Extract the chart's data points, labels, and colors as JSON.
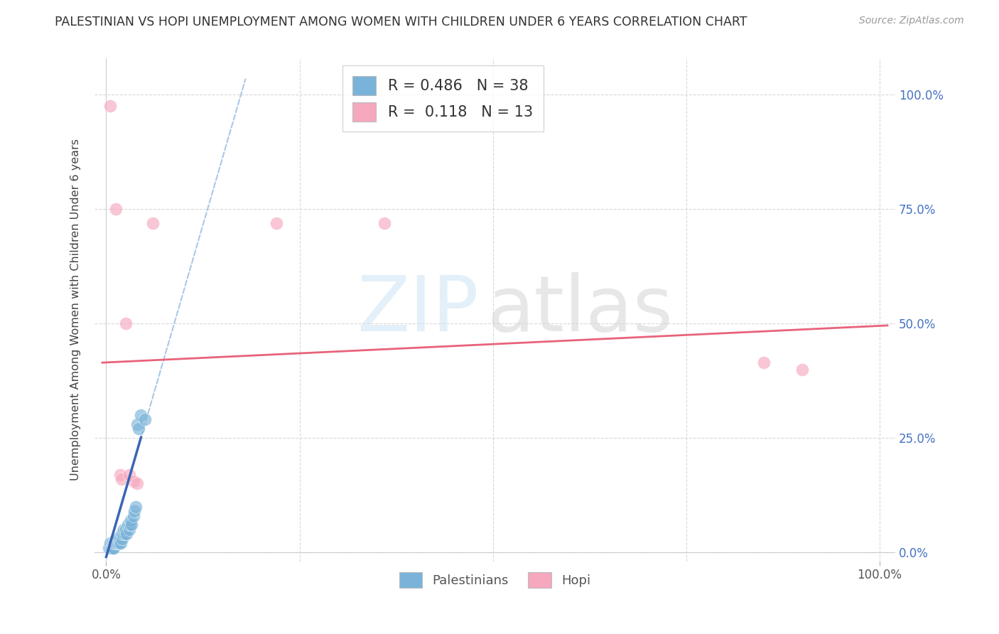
{
  "title": "PALESTINIAN VS HOPI UNEMPLOYMENT AMONG WOMEN WITH CHILDREN UNDER 6 YEARS CORRELATION CHART",
  "source": "Source: ZipAtlas.com",
  "ylabel": "Unemployment Among Women with Children Under 6 years",
  "xlim": [
    -0.015,
    1.02
  ],
  "ylim": [
    -0.02,
    1.08
  ],
  "ytick_values": [
    0.0,
    0.25,
    0.5,
    0.75,
    1.0
  ],
  "xtick_values": [
    0.0,
    1.0
  ],
  "background_color": "#ffffff",
  "grid_color": "#d8d8d8",
  "scatter_blue": "#7ab3d9",
  "scatter_pink": "#f5a8be",
  "blue_line_color": "#3a65b5",
  "pink_line_color": "#e8637a",
  "dash_line_color": "#a8c8e8",
  "right_tick_color": "#4472c4",
  "palestinians_x": [
    0.003,
    0.004,
    0.005,
    0.006,
    0.007,
    0.008,
    0.009,
    0.01,
    0.01,
    0.011,
    0.012,
    0.013,
    0.014,
    0.015,
    0.015,
    0.016,
    0.017,
    0.018,
    0.019,
    0.02,
    0.021,
    0.022,
    0.023,
    0.024,
    0.025,
    0.026,
    0.028,
    0.03,
    0.031,
    0.032,
    0.033,
    0.035,
    0.036,
    0.038,
    0.04,
    0.042,
    0.045,
    0.05
  ],
  "palestinians_y": [
    0.01,
    0.01,
    0.02,
    0.01,
    0.01,
    0.02,
    0.01,
    0.02,
    0.01,
    0.02,
    0.03,
    0.02,
    0.03,
    0.03,
    0.02,
    0.03,
    0.02,
    0.03,
    0.02,
    0.04,
    0.03,
    0.04,
    0.05,
    0.04,
    0.05,
    0.04,
    0.06,
    0.05,
    0.06,
    0.07,
    0.06,
    0.08,
    0.09,
    0.1,
    0.28,
    0.27,
    0.3,
    0.29
  ],
  "hopi_x": [
    0.005,
    0.012,
    0.018,
    0.02,
    0.025,
    0.03,
    0.035,
    0.06,
    0.22,
    0.36,
    0.85,
    0.9,
    0.04
  ],
  "hopi_y": [
    0.975,
    0.75,
    0.17,
    0.16,
    0.5,
    0.17,
    0.155,
    0.72,
    0.72,
    0.72,
    0.415,
    0.4,
    0.15
  ],
  "blue_trendline_slope": 5.8,
  "blue_trendline_intercept": -0.01,
  "pink_trendline_slope": 0.08,
  "pink_trendline_intercept": 0.415
}
